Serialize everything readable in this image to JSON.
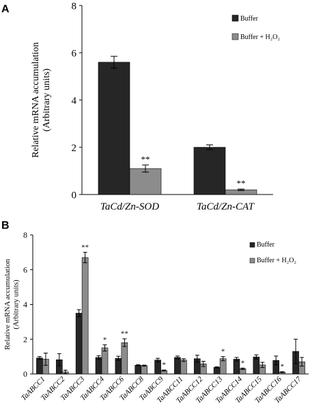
{
  "panels": {
    "a": {
      "letter": "A"
    },
    "b": {
      "letter": "B"
    }
  },
  "colors": {
    "buffer": "#262626",
    "buffer_h2o2": "#8c8c8c",
    "axis": "#000000"
  },
  "chart_data": [
    {
      "type": "bar",
      "panel": "A",
      "categories": [
        "TaCd/Zn-SOD",
        "TaCd/Zn-CAT"
      ],
      "series": [
        {
          "name": "Buffer",
          "values": [
            5.6,
            2.0
          ],
          "errors": [
            0.25,
            0.1
          ]
        },
        {
          "name": "Buffer + H₂O₂",
          "values": [
            1.1,
            0.2
          ],
          "errors": [
            0.15,
            0.03
          ]
        }
      ],
      "significance": [
        [
          "",
          ""
        ],
        [
          "**",
          "**"
        ]
      ],
      "ylabel": [
        "Relative mRNA accumulation",
        "(Arbitrary units)"
      ],
      "yticks": [
        "0",
        "2",
        "4",
        "6",
        "8"
      ],
      "ylim": [
        0,
        8
      ],
      "legend_position": "top-right",
      "grid": false
    },
    {
      "type": "bar",
      "panel": "B",
      "categories": [
        "TaABCC1",
        "TaABCC2",
        "TaABCC3",
        "TaABCC4",
        "TaABCC6",
        "TaABCC8",
        "TaABCC9",
        "TaABCC11",
        "TaABCC12",
        "TaABCC13",
        "TaABCC14",
        "TaABCC15",
        "TaABCC16",
        "TaABCC17"
      ],
      "series": [
        {
          "name": "Buffer",
          "values": [
            0.92,
            0.82,
            3.5,
            0.95,
            0.9,
            0.5,
            0.8,
            0.95,
            0.88,
            0.38,
            0.85,
            0.98,
            0.78,
            1.3
          ],
          "errors": [
            0.08,
            0.35,
            0.2,
            0.1,
            0.12,
            0.03,
            0.1,
            0.08,
            0.2,
            0.03,
            0.1,
            0.12,
            0.25,
            0.7
          ]
        },
        {
          "name": "Buffer + H₂O₂",
          "values": [
            0.85,
            0.12,
            6.7,
            1.5,
            1.8,
            0.48,
            0.2,
            0.8,
            0.58,
            0.88,
            0.3,
            0.52,
            0.1,
            0.7
          ],
          "errors": [
            0.35,
            0.1,
            0.3,
            0.18,
            0.22,
            0.03,
            0.03,
            0.08,
            0.15,
            0.12,
            0.04,
            0.15,
            0.03,
            0.25
          ]
        }
      ],
      "significance": [
        [
          "",
          "",
          "",
          "",
          "",
          "",
          "",
          "",
          "",
          "",
          "",
          "",
          "",
          ""
        ],
        [
          "",
          "",
          "**",
          "*",
          "**",
          "",
          "*",
          "",
          "",
          "*",
          "*",
          "",
          "*",
          ""
        ]
      ],
      "ylabel": [
        "Relative mRNA accumulation",
        "(Arbitrary units)"
      ],
      "yticks": [
        "0",
        "2",
        "4",
        "6",
        "8"
      ],
      "ylim": [
        0,
        8
      ],
      "legend_position": "top-right",
      "grid": false
    }
  ]
}
